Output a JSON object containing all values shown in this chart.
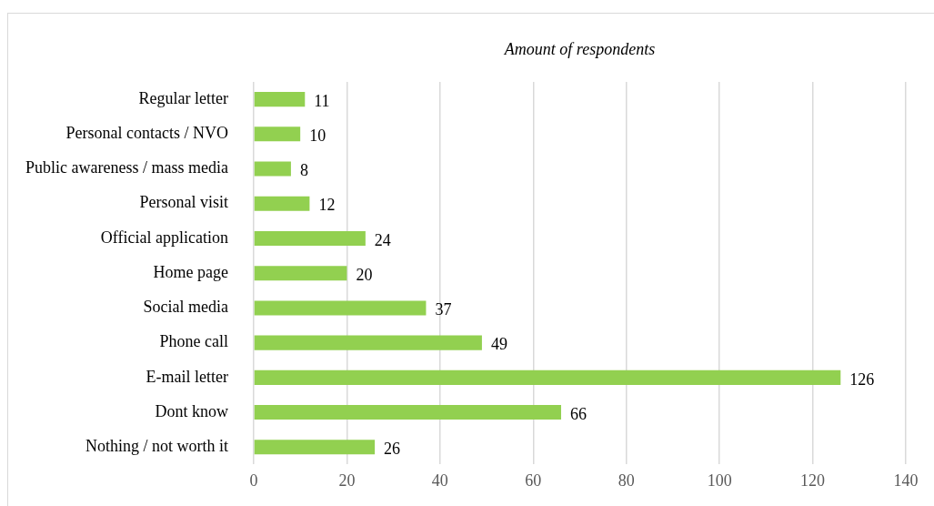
{
  "chart_data": {
    "type": "bar",
    "orientation": "horizontal",
    "title": "Amount of respondents",
    "categories": [
      "Regular letter",
      "Personal contacts / NVO",
      "Public awareness / mass media",
      "Personal visit",
      "Official application",
      "Home page",
      "Social media",
      "Phone call",
      "E-mail letter",
      "Dont know",
      "Nothing / not worth it"
    ],
    "values": [
      11,
      10,
      8,
      12,
      24,
      20,
      37,
      49,
      126,
      66,
      26
    ],
    "color": "#92d050",
    "xlim": [
      0,
      140
    ],
    "xticks": [
      0,
      20,
      40,
      60,
      80,
      100,
      120,
      140
    ],
    "grid": "x",
    "data_labels": true
  }
}
